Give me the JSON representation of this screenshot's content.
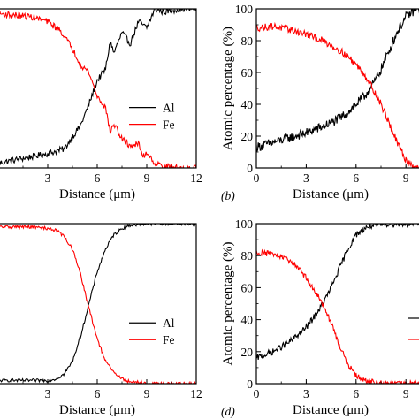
{
  "chart_data": [
    {
      "type": "line",
      "panel_label": "",
      "xlabel": "Distance (μm)",
      "ylabel": "",
      "xlim": [
        0,
        12
      ],
      "ylim": [
        0,
        100
      ],
      "xticks": [
        "3",
        "6",
        "9",
        "12"
      ],
      "yticks": [],
      "legend": {
        "placement": "right-lower",
        "entries": [
          "Al",
          "Fe"
        ]
      },
      "series": [
        {
          "name": "Al",
          "color": "#000000",
          "noise": 2.0,
          "x": [
            0,
            1,
            2,
            3,
            4,
            5,
            5.5,
            6,
            6.5,
            6.8,
            7,
            7.5,
            8,
            8.5,
            9,
            9.5,
            10,
            11,
            12
          ],
          "y": [
            3,
            5,
            7,
            9,
            12,
            27,
            40,
            55,
            62,
            80,
            72,
            85,
            78,
            92,
            88,
            100,
            98,
            100,
            100
          ]
        },
        {
          "name": "Fe",
          "color": "#ff0000",
          "noise": 2.0,
          "x": [
            0,
            1,
            2,
            3,
            3.8,
            4.5,
            5,
            5.5,
            6,
            6.5,
            6.8,
            7,
            7.5,
            8,
            8.5,
            8.8,
            9,
            9.5,
            10,
            11,
            12
          ],
          "y": [
            97,
            96,
            95,
            92,
            86,
            75,
            65,
            60,
            45,
            38,
            22,
            28,
            18,
            14,
            15,
            7,
            10,
            3,
            1,
            0,
            0
          ]
        }
      ]
    },
    {
      "type": "line",
      "panel_label": "(b)",
      "xlabel": "Distance (μm)",
      "ylabel": "Atomic percentage (%)",
      "xlim": [
        0,
        10
      ],
      "ylim": [
        0,
        100
      ],
      "xticks": [
        "0",
        "3",
        "6",
        "9"
      ],
      "yticks": [
        "0",
        "20",
        "40",
        "60",
        "80",
        "100"
      ],
      "series": [
        {
          "name": "",
          "color": "#000000",
          "noise": 3.0,
          "x": [
            0,
            1,
            2,
            3,
            4,
            5,
            5.5,
            6,
            6.5,
            7,
            7.5,
            8,
            8.5,
            9,
            9.5,
            10
          ],
          "y": [
            13,
            16,
            19,
            22,
            26,
            31,
            35,
            40,
            45,
            52,
            62,
            74,
            86,
            95,
            99,
            100
          ]
        },
        {
          "name": "",
          "color": "#ff0000",
          "noise": 2.2,
          "x": [
            0,
            1,
            2,
            3,
            4,
            5,
            5.5,
            6,
            6.5,
            7,
            7.5,
            8,
            8.5,
            9,
            9.5,
            10
          ],
          "y": [
            88,
            89,
            87,
            84,
            80,
            74,
            70,
            65,
            59,
            50,
            40,
            28,
            15,
            5,
            1,
            0
          ]
        }
      ]
    },
    {
      "type": "line",
      "panel_label": "",
      "xlabel": "Distance (μm)",
      "ylabel": "",
      "xlim": [
        0,
        12
      ],
      "ylim": [
        0,
        100
      ],
      "xticks": [
        "3",
        "6",
        "9",
        "12"
      ],
      "yticks": [],
      "legend": {
        "placement": "right-lower",
        "entries": [
          "Al",
          "Fe"
        ]
      },
      "series": [
        {
          "name": "Al",
          "color": "#000000",
          "noise": 1.0,
          "x": [
            0,
            1,
            2,
            3,
            3.5,
            4,
            4.5,
            5,
            5.5,
            6,
            6.5,
            7,
            7.5,
            8,
            9,
            10,
            11,
            12
          ],
          "y": [
            2,
            2,
            2,
            2,
            3,
            6,
            14,
            30,
            50,
            70,
            84,
            93,
            97,
            99,
            100,
            100,
            100,
            100
          ]
        },
        {
          "name": "Fe",
          "color": "#ff0000",
          "noise": 1.0,
          "x": [
            0,
            1,
            2,
            3,
            3.5,
            4,
            4.5,
            5,
            5.5,
            6,
            6.5,
            7,
            7.5,
            8,
            8.5,
            9,
            10,
            12
          ],
          "y": [
            98,
            98,
            98,
            97,
            96,
            92,
            84,
            68,
            47,
            28,
            14,
            7,
            3,
            1,
            1,
            0,
            0,
            0
          ]
        }
      ]
    },
    {
      "type": "line",
      "panel_label": "(d)",
      "xlabel": "Distance (μm)",
      "ylabel": "Atomic percentage (%)",
      "xlim": [
        0,
        10
      ],
      "ylim": [
        0,
        100
      ],
      "xticks": [
        "0",
        "3",
        "6",
        "9"
      ],
      "yticks": [
        "0",
        "20",
        "40",
        "60",
        "80",
        "100"
      ],
      "series": [
        {
          "name": "",
          "color": "#000000",
          "noise": 2.0,
          "x": [
            0,
            1,
            2,
            3,
            3.5,
            4,
            4.5,
            5,
            5.5,
            6,
            6.5,
            7,
            8,
            9,
            10
          ],
          "y": [
            16,
            20,
            26,
            35,
            42,
            50,
            60,
            72,
            84,
            93,
            97,
            99,
            100,
            100,
            100
          ]
        },
        {
          "name": "",
          "color": "#ff0000",
          "noise": 1.8,
          "x": [
            0,
            1,
            2,
            2.5,
            3,
            3.5,
            4,
            4.5,
            5,
            5.5,
            6,
            6.5,
            7,
            8,
            9,
            10
          ],
          "y": [
            82,
            81,
            77,
            73,
            66,
            58,
            50,
            38,
            24,
            12,
            5,
            2,
            1,
            0,
            0,
            0
          ]
        }
      ]
    }
  ]
}
